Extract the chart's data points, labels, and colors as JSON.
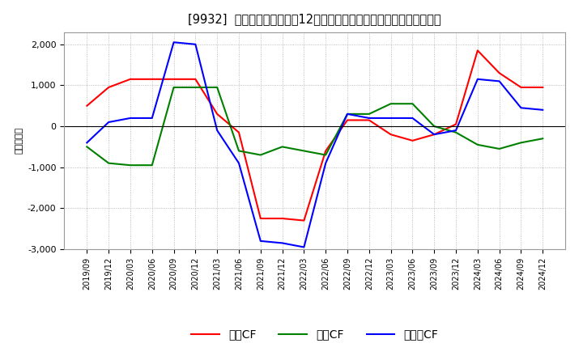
{
  "title": "[9932]  キャッシュフローの12か月移動合計の対前年同期増減額の推移",
  "ylabel": "（百万円）",
  "x_labels": [
    "2019/09",
    "2019/12",
    "2020/03",
    "2020/06",
    "2020/09",
    "2020/12",
    "2021/03",
    "2021/06",
    "2021/09",
    "2021/12",
    "2022/03",
    "2022/06",
    "2022/09",
    "2022/12",
    "2023/03",
    "2023/06",
    "2023/09",
    "2023/12",
    "2024/03",
    "2024/06",
    "2024/09",
    "2024/12"
  ],
  "operating_cf": [
    500,
    950,
    1150,
    1150,
    1150,
    1150,
    300,
    -150,
    -2250,
    -2250,
    -2300,
    -600,
    150,
    150,
    -200,
    -350,
    -200,
    50,
    1850,
    1300,
    950,
    950
  ],
  "investing_cf": [
    -500,
    -900,
    -950,
    -950,
    950,
    950,
    950,
    -600,
    -700,
    -500,
    -600,
    -700,
    300,
    300,
    550,
    550,
    0,
    -150,
    -450,
    -550,
    -400,
    -300
  ],
  "free_cf": [
    -400,
    100,
    200,
    200,
    2050,
    2000,
    -100,
    -900,
    -2800,
    -2850,
    -2950,
    -900,
    300,
    200,
    200,
    200,
    -200,
    -100,
    1150,
    1100,
    450,
    400
  ],
  "operating_color": "#ff0000",
  "investing_color": "#008000",
  "free_color": "#0000ff",
  "ylim": [
    -3000,
    2300
  ],
  "yticks": [
    -3000,
    -2000,
    -1000,
    0,
    1000,
    2000
  ],
  "background_color": "#ffffff",
  "grid_color": "#aaaaaa",
  "title_fontsize": 10.5,
  "legend_labels": [
    "営業CF",
    "投資CF",
    "フリーCF"
  ]
}
